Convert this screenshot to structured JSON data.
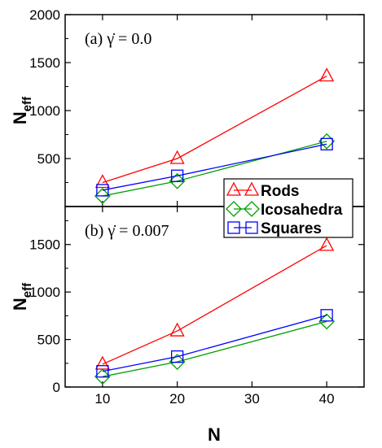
{
  "chart_data": [
    {
      "type": "line",
      "panel_label": "(a) γ̇ = 0.0",
      "x": [
        10,
        20,
        40
      ],
      "xlim": [
        5,
        45
      ],
      "ylim": [
        0,
        2000
      ],
      "yticks": [
        500,
        1000,
        1500,
        2000
      ],
      "ylabel": "N",
      "ylabel_sub": "eff",
      "series": [
        {
          "name": "Rods",
          "values": [
            250,
            500,
            1360
          ],
          "color": "#ff0000",
          "marker": "triangle"
        },
        {
          "name": "Icosahedra",
          "values": [
            110,
            265,
            680
          ],
          "color": "#00a000",
          "marker": "diamond"
        },
        {
          "name": "Squares",
          "values": [
            170,
            320,
            650
          ],
          "color": "#0000ff",
          "marker": "square"
        }
      ]
    },
    {
      "type": "line",
      "panel_label": "(b) γ̇ = 0.007",
      "x": [
        10,
        20,
        40
      ],
      "xlim": [
        5,
        45
      ],
      "ylim": [
        0,
        2000
      ],
      "yticks": [
        0,
        500,
        1000,
        1500
      ],
      "xticks": [
        10,
        20,
        30,
        40
      ],
      "xlabel": "N",
      "ylabel": "N",
      "ylabel_sub": "eff",
      "series": [
        {
          "name": "Rods",
          "values": [
            240,
            590,
            1490
          ],
          "color": "#ff0000",
          "marker": "triangle"
        },
        {
          "name": "Icosahedra",
          "values": [
            110,
            265,
            690
          ],
          "color": "#00a000",
          "marker": "diamond"
        },
        {
          "name": "Squares",
          "values": [
            165,
            320,
            755
          ],
          "color": "#0000ff",
          "marker": "square"
        }
      ]
    }
  ],
  "legend": {
    "entries": [
      {
        "label": "Rods",
        "color": "#ff0000",
        "marker": "triangle"
      },
      {
        "label": "Icosahedra",
        "color": "#00a000",
        "marker": "diamond"
      },
      {
        "label": "Squares",
        "color": "#0000ff",
        "marker": "square"
      }
    ]
  }
}
